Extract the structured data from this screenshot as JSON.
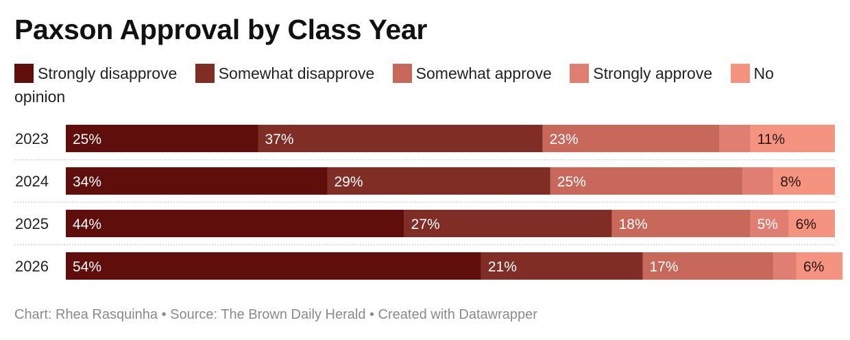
{
  "colors": {
    "strongly_disapprove": "#5f0e0c",
    "somewhat_disapprove": "#802d25",
    "somewhat_approve": "#c8685b",
    "strongly_approve": "#e07f71",
    "no_opinion": "#f4937f",
    "separator": "#c9c9c9"
  },
  "chart_data": {
    "type": "bar",
    "orientation": "horizontal",
    "stacked": true,
    "title": "Paxson Approval by Class Year",
    "categories": [
      "2023",
      "2024",
      "2025",
      "2026"
    ],
    "series": [
      {
        "name": "Strongly disapprove",
        "values": [
          25,
          34,
          44,
          54
        ],
        "labels": [
          "25%",
          "34%",
          "44%",
          "54%"
        ]
      },
      {
        "name": "Somewhat disapprove",
        "values": [
          37,
          29,
          27,
          21
        ],
        "labels": [
          "37%",
          "29%",
          "27%",
          "21%"
        ]
      },
      {
        "name": "Somewhat approve",
        "values": [
          23,
          25,
          18,
          17
        ],
        "labels": [
          "23%",
          "25%",
          "18%",
          "17%"
        ]
      },
      {
        "name": "Strongly approve",
        "values": [
          4,
          4,
          5,
          3
        ],
        "labels": [
          "",
          "",
          "5%",
          ""
        ]
      },
      {
        "name": "No opinion",
        "values": [
          11,
          8,
          6,
          6
        ],
        "labels": [
          "11%",
          "8%",
          "6%",
          "6%"
        ]
      }
    ],
    "xlim": [
      0,
      100
    ],
    "legend": {
      "items": [
        "Strongly disapprove",
        "Somewhat disapprove",
        "Somewhat approve",
        "Strongly approve",
        "No opinion"
      ]
    },
    "footer": "Chart: Rhea Rasquinha • Source: The Brown Daily Herald • Created with Datawrapper"
  }
}
